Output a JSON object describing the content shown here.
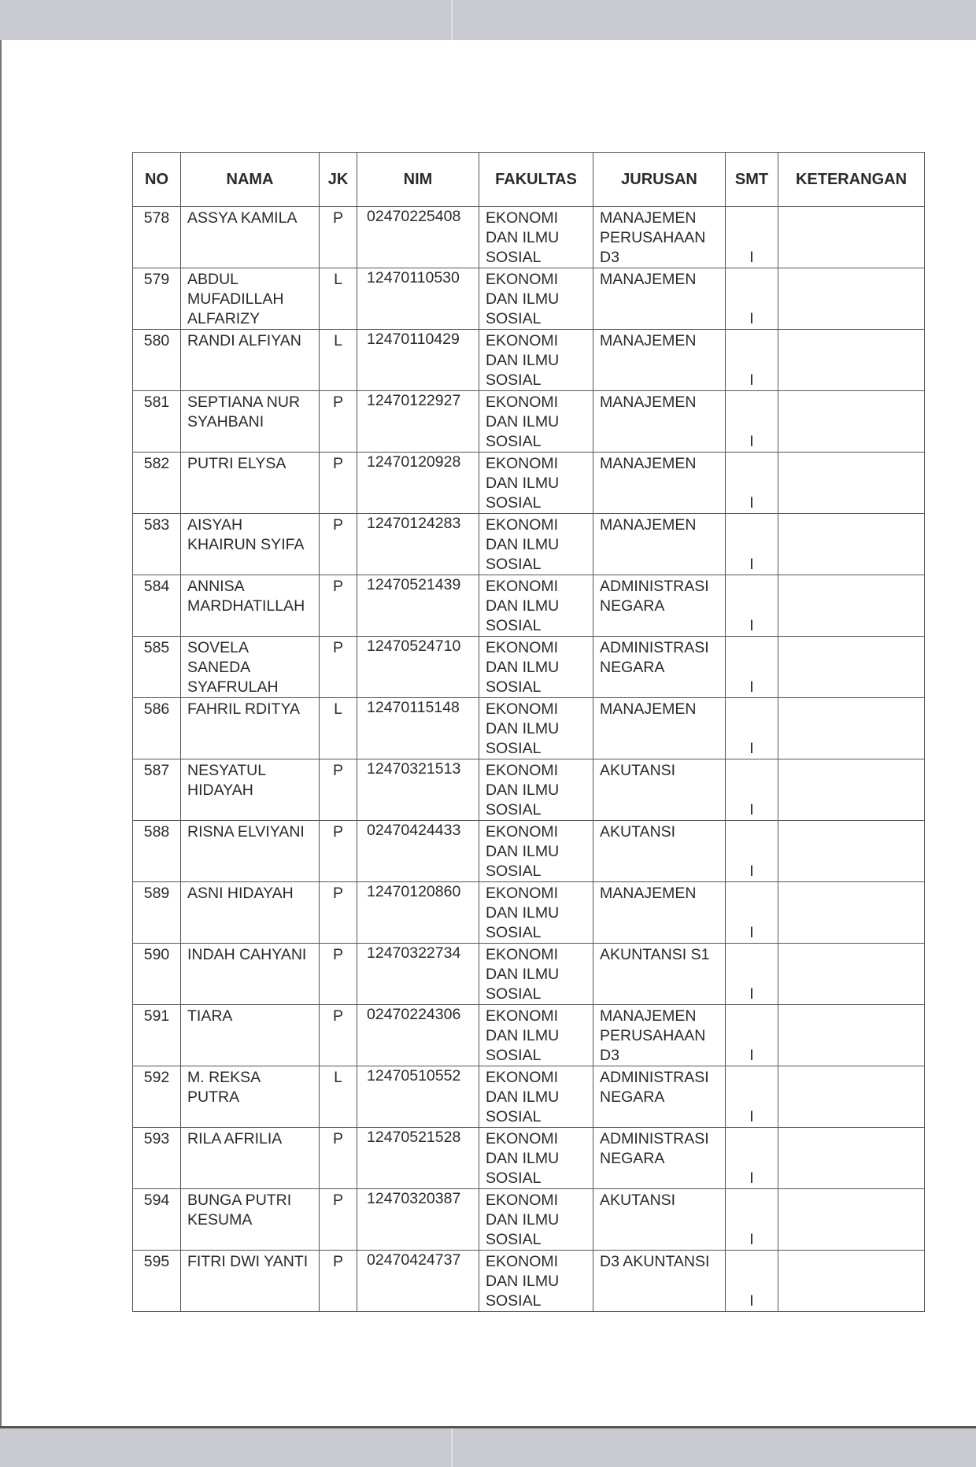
{
  "table": {
    "headers": [
      "NO",
      "NAMA",
      "JK",
      "NIM",
      "FAKULTAS",
      "JURUSAN",
      "SMT",
      "KETERANGAN"
    ],
    "rows": [
      {
        "no": "578",
        "nama": "ASSYA KAMILA",
        "jk": "P",
        "nim": "02470225408",
        "fakultas": "EKONOMI DAN ILMU SOSIAL",
        "jurusan": "MANAJEMEN PERUSAHAAN D3",
        "smt": "I",
        "keterangan": ""
      },
      {
        "no": "579",
        "nama": "ABDUL MUFADILLAH ALFARIZY",
        "jk": "L",
        "nim": "12470110530",
        "fakultas": "EKONOMI DAN ILMU SOSIAL",
        "jurusan": "MANAJEMEN",
        "smt": "I",
        "keterangan": ""
      },
      {
        "no": "580",
        "nama": "RANDI ALFIYAN",
        "jk": "L",
        "nim": "12470110429",
        "fakultas": "EKONOMI DAN ILMU SOSIAL",
        "jurusan": "MANAJEMEN",
        "smt": "I",
        "keterangan": ""
      },
      {
        "no": "581",
        "nama": "SEPTIANA NUR SYAHBANI",
        "jk": "P",
        "nim": "12470122927",
        "fakultas": "EKONOMI DAN ILMU SOSIAL",
        "jurusan": "MANAJEMEN",
        "smt": "I",
        "keterangan": ""
      },
      {
        "no": "582",
        "nama": "PUTRI ELYSA",
        "jk": "P",
        "nim": "12470120928",
        "fakultas": "EKONOMI DAN ILMU SOSIAL",
        "jurusan": "MANAJEMEN",
        "smt": "I",
        "keterangan": ""
      },
      {
        "no": "583",
        "nama": "AISYAH KHAIRUN SYIFA",
        "jk": "P",
        "nim": "12470124283",
        "fakultas": "EKONOMI DAN ILMU SOSIAL",
        "jurusan": "MANAJEMEN",
        "smt": "I",
        "keterangan": ""
      },
      {
        "no": "584",
        "nama": "ANNISA MARDHATILLAH",
        "jk": "P",
        "nim": "12470521439",
        "fakultas": "EKONOMI DAN ILMU SOSIAL",
        "jurusan": "ADMINISTRASI NEGARA",
        "smt": "I",
        "keterangan": ""
      },
      {
        "no": "585",
        "nama": "SOVELA SANEDA SYAFRULAH",
        "jk": "P",
        "nim": "12470524710",
        "fakultas": "EKONOMI DAN ILMU SOSIAL",
        "jurusan": "ADMINISTRASI NEGARA",
        "smt": "I",
        "keterangan": ""
      },
      {
        "no": "586",
        "nama": "FAHRIL RDITYA",
        "jk": "L",
        "nim": "12470115148",
        "fakultas": "EKONOMI DAN ILMU SOSIAL",
        "jurusan": "MANAJEMEN",
        "smt": "I",
        "keterangan": ""
      },
      {
        "no": "587",
        "nama": "NESYATUL HIDAYAH",
        "jk": "P",
        "nim": "12470321513",
        "fakultas": "EKONOMI DAN ILMU SOSIAL",
        "jurusan": "AKUTANSI",
        "smt": "I",
        "keterangan": ""
      },
      {
        "no": "588",
        "nama": "RISNA ELVIYANI",
        "jk": "P",
        "nim": "02470424433",
        "fakultas": "EKONOMI DAN ILMU SOSIAL",
        "jurusan": "AKUTANSI",
        "smt": "I",
        "keterangan": ""
      },
      {
        "no": "589",
        "nama": "ASNI HIDAYAH",
        "jk": "P",
        "nim": "12470120860",
        "fakultas": "EKONOMI DAN ILMU SOSIAL",
        "jurusan": "MANAJEMEN",
        "smt": "I",
        "keterangan": ""
      },
      {
        "no": "590",
        "nama": "INDAH CAHYANI",
        "jk": "P",
        "nim": "12470322734",
        "fakultas": "EKONOMI DAN ILMU SOSIAL",
        "jurusan": "AKUNTANSI S1",
        "smt": "I",
        "keterangan": ""
      },
      {
        "no": "591",
        "nama": "TIARA",
        "jk": "P",
        "nim": "02470224306",
        "fakultas": "EKONOMI DAN ILMU SOSIAL",
        "jurusan": "MANAJEMEN PERUSAHAAN D3",
        "smt": "I",
        "keterangan": ""
      },
      {
        "no": "592",
        "nama": "M. REKSA PUTRA",
        "jk": "L",
        "nim": "12470510552",
        "fakultas": "EKONOMI DAN ILMU SOSIAL",
        "jurusan": "ADMINISTRASI NEGARA",
        "smt": "I",
        "keterangan": ""
      },
      {
        "no": "593",
        "nama": "RILA AFRILIA",
        "jk": "P",
        "nim": "12470521528",
        "fakultas": "EKONOMI DAN ILMU SOSIAL",
        "jurusan": "ADMINISTRASI NEGARA",
        "smt": "I",
        "keterangan": ""
      },
      {
        "no": "594",
        "nama": "BUNGA PUTRI KESUMA",
        "jk": "P",
        "nim": "12470320387",
        "fakultas": "EKONOMI DAN ILMU SOSIAL",
        "jurusan": "AKUTANSI",
        "smt": "I",
        "keterangan": ""
      },
      {
        "no": "595",
        "nama": "FITRI DWI YANTI",
        "jk": "P",
        "nim": "02470424737",
        "fakultas": "EKONOMI DAN ILMU SOSIAL",
        "jurusan": "D3 AKUNTANSI",
        "smt": "I",
        "keterangan": ""
      }
    ]
  }
}
